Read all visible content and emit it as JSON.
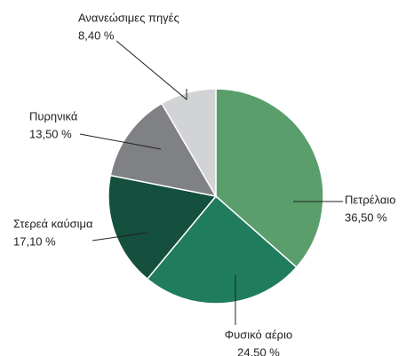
{
  "chart_data": {
    "type": "pie",
    "categories": [
      "Πετρέλαιο",
      "Φυσικό αέριο",
      "Στερεά καύσιμα",
      "Πυρηνικά",
      "Ανανεώσιμες πηγές"
    ],
    "values": [
      36.5,
      24.5,
      17.1,
      13.5,
      8.4
    ],
    "value_labels": [
      "36,50 %",
      "24.50 %",
      "17,10 %",
      "13,50 %",
      "8,40 %"
    ],
    "colors": [
      "#5a9e6b",
      "#1f7c5d",
      "#154f3e",
      "#808184",
      "#d1d3d4"
    ]
  }
}
